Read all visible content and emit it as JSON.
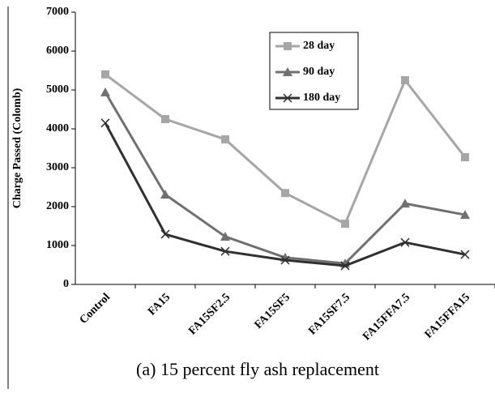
{
  "chart_data": {
    "type": "line",
    "title": "(a) 15 percent fly ash replacement",
    "y_label": "Charge Passed (Colomb)",
    "categories": [
      "Control",
      "FA15",
      "FA15SF2.5",
      "FA15SF5",
      "FA15SF7.5",
      "FA15FFA7.5",
      "FA15FFA15"
    ],
    "series": [
      {
        "name": "28 day",
        "color": "#a6a6a6",
        "marker": "square",
        "values": [
          5400,
          4250,
          3730,
          2350,
          1560,
          5250,
          3270
        ]
      },
      {
        "name": "90 day",
        "color": "#707070",
        "marker": "triangle",
        "values": [
          4940,
          2310,
          1230,
          690,
          540,
          2080,
          1790
        ]
      },
      {
        "name": "180 day",
        "color": "#303030",
        "marker": "x",
        "values": [
          4150,
          1290,
          850,
          625,
          480,
          1080,
          770
        ]
      }
    ],
    "ylim": [
      0,
      7000
    ],
    "yticks": [
      0,
      1000,
      2000,
      3000,
      4000,
      5000,
      6000,
      7000
    ],
    "grid": false
  }
}
